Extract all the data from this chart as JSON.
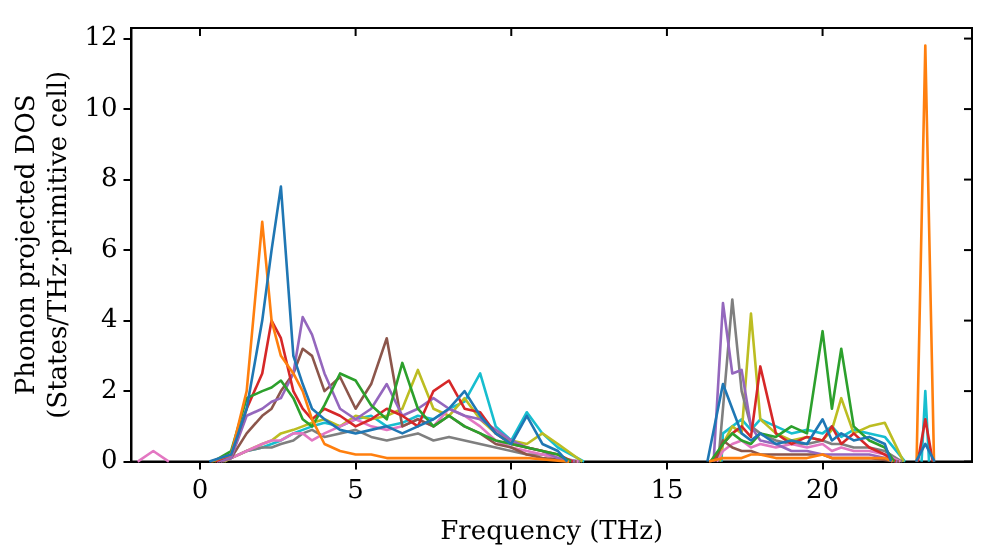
{
  "chart_data": {
    "type": "line",
    "xlabel": "Frequency (THz)",
    "ylabel": "Phonon projected DOS\n(States/THz·primitive cell)",
    "series": [
      {
        "color": "#1f77b4",
        "x": [
          0.3,
          1,
          1.5,
          2,
          2.3,
          2.6,
          3,
          3.3,
          3.6,
          4,
          4.5,
          5,
          5.5,
          6,
          6.5,
          7,
          7.5,
          8,
          8.5,
          9,
          9.5,
          10,
          10.5,
          11,
          11.5,
          11.8,
          14,
          16.3,
          16.8,
          17.1,
          17.4,
          17.7,
          18,
          18.5,
          19,
          19.5,
          20,
          20.3,
          20.6,
          21,
          21.5,
          22,
          22.2,
          22.8,
          23.0,
          23.3,
          23.6
        ],
        "values": [
          0,
          0.2,
          1.5,
          4,
          6,
          7.8,
          3,
          2.2,
          1.5,
          1.2,
          0.9,
          0.8,
          0.9,
          1.0,
          0.8,
          1.0,
          1.2,
          1.5,
          2.0,
          1.3,
          0.8,
          0.5,
          1.3,
          0.5,
          0.3,
          0,
          null,
          0,
          2.2,
          1.5,
          0.8,
          0.6,
          0.8,
          0.5,
          0.6,
          0.5,
          1.2,
          0.6,
          0.8,
          0.6,
          0.7,
          0.5,
          0,
          null,
          0,
          0.5,
          0
        ]
      },
      {
        "color": "#ff7f0e",
        "x": [
          0.36,
          1,
          1.5,
          2,
          2.3,
          2.6,
          3,
          3.3,
          3.6,
          4,
          4.5,
          5,
          5.5,
          6,
          6.5,
          7,
          7.5,
          8,
          8.5,
          9,
          9.5,
          10,
          10.5,
          11.86,
          14,
          16.35,
          16.8,
          17.1,
          17.4,
          17.7,
          18,
          18.5,
          19,
          19.5,
          20,
          20.3,
          20.6,
          21,
          21.5,
          22,
          22.25,
          22.8,
          23.02,
          23.3,
          23.58
        ],
        "values": [
          0,
          0.2,
          2,
          6.8,
          4,
          3,
          2.5,
          2,
          1.2,
          0.5,
          0.3,
          0.2,
          0.2,
          0.1,
          0.1,
          0.1,
          0.1,
          0.1,
          0.1,
          0.1,
          0.1,
          0.1,
          0.1,
          0,
          null,
          0,
          0.1,
          0.1,
          0.1,
          0.2,
          0.2,
          0.1,
          0.1,
          0.1,
          0.2,
          0.1,
          0.1,
          0.1,
          0.1,
          0.1,
          0,
          null,
          0,
          11.8,
          0
        ]
      },
      {
        "color": "#2ca02c",
        "x": [
          0.42,
          1,
          1.5,
          2,
          2.3,
          2.6,
          3,
          3.3,
          3.6,
          4,
          4.5,
          5,
          5.5,
          6,
          6.5,
          7,
          7.5,
          8,
          8.5,
          9,
          9.5,
          10,
          10.5,
          11,
          11.5,
          11.92,
          14,
          16.4,
          16.8,
          17.1,
          17.4,
          17.7,
          18,
          18.5,
          19,
          19.5,
          20,
          20.3,
          20.6,
          21,
          21.5,
          22,
          22.3
        ],
        "values": [
          0,
          0.3,
          1.8,
          2,
          2.1,
          2.3,
          1.8,
          1.2,
          1,
          1.6,
          2.5,
          2.3,
          1.6,
          1.2,
          2.8,
          1.5,
          1.0,
          1.3,
          1.0,
          0.8,
          0.6,
          0.5,
          0.4,
          0.3,
          0.2,
          0,
          null,
          0,
          0.5,
          0.8,
          0.6,
          0.5,
          0.8,
          0.7,
          1,
          0.8,
          3.7,
          1.5,
          3.2,
          1.0,
          0.6,
          0.4,
          0
        ]
      },
      {
        "color": "#d62728",
        "x": [
          0.48,
          1,
          1.5,
          2,
          2.3,
          2.6,
          3,
          3.3,
          3.6,
          4,
          4.5,
          5,
          5.5,
          6,
          6.5,
          7,
          7.5,
          8,
          8.5,
          9,
          9.5,
          10,
          10.5,
          11,
          11.5,
          11.98,
          14,
          16.45,
          16.8,
          17.1,
          17.4,
          17.7,
          18,
          18.5,
          19,
          19.5,
          20,
          20.3,
          20.6,
          21,
          21.5,
          22,
          22.35,
          22.8,
          23.06,
          23.3,
          23.54
        ],
        "values": [
          0,
          0.2,
          1.5,
          2.5,
          4,
          3.5,
          2,
          1.5,
          1.2,
          1.5,
          1.3,
          1.0,
          1.2,
          1.5,
          1.3,
          1.0,
          2.0,
          2.3,
          1.5,
          1.4,
          0.8,
          0.5,
          0.4,
          0.3,
          0.2,
          0,
          null,
          0,
          0.5,
          0.8,
          1.0,
          0.7,
          2.7,
          0.8,
          0.5,
          0.7,
          0.6,
          1.0,
          0.5,
          0.8,
          0.4,
          0.2,
          0,
          null,
          0,
          1.2,
          0
        ]
      },
      {
        "color": "#9467bd",
        "x": [
          0.54,
          1,
          1.5,
          2,
          2.3,
          2.6,
          3,
          3.3,
          3.6,
          4,
          4.5,
          5,
          5.5,
          6,
          6.5,
          7,
          7.5,
          8,
          8.5,
          9,
          9.5,
          10,
          10.5,
          11,
          11.5,
          12.04,
          14,
          16.5,
          16.8,
          17.1,
          17.4,
          17.7,
          18,
          18.5,
          19,
          19.5,
          20,
          20.3,
          20.6,
          21,
          21.5,
          22,
          22.4
        ],
        "values": [
          0,
          0.1,
          1.3,
          1.5,
          1.7,
          1.8,
          2.5,
          4.1,
          3.6,
          2.5,
          1.5,
          1.2,
          1.5,
          2.2,
          1.3,
          1.5,
          1.8,
          1.5,
          1.3,
          1.2,
          0.9,
          0.6,
          0.4,
          0.3,
          0.1,
          0,
          null,
          0,
          4.5,
          2.5,
          2.6,
          1.0,
          0.6,
          0.5,
          0.3,
          0.3,
          0.2,
          0.2,
          0.2,
          0.2,
          0.2,
          0.1,
          0
        ]
      },
      {
        "color": "#8c564b",
        "x": [
          0.6,
          1,
          1.5,
          2,
          2.3,
          2.6,
          3,
          3.3,
          3.6,
          4,
          4.5,
          5,
          5.5,
          6,
          6.5,
          7,
          7.5,
          8,
          8.5,
          9,
          9.5,
          10,
          10.5,
          11,
          12.1,
          14,
          16.55,
          16.8,
          17.1,
          17.4,
          17.7,
          18,
          18.5,
          19,
          19.5,
          20,
          20.3,
          20.6,
          21,
          21.5,
          22.45
        ],
        "values": [
          0,
          0.1,
          0.8,
          1.3,
          1.5,
          2,
          2.5,
          3.2,
          3.0,
          2.0,
          2.4,
          1.5,
          2.2,
          3.5,
          1.0,
          1.2,
          1.0,
          1.3,
          1.0,
          0.8,
          0.5,
          0.4,
          0.2,
          0.1,
          0,
          null,
          0,
          0.6,
          0.4,
          0.3,
          0.3,
          0.2,
          0.2,
          0.2,
          0.2,
          0.2,
          0.1,
          0.1,
          0.1,
          0.1,
          0
        ]
      },
      {
        "color": "#e377c2",
        "x": [
          -2,
          -1.5,
          -1,
          -0.5,
          0.66,
          1,
          1.5,
          2,
          2.3,
          2.6,
          3,
          3.3,
          3.6,
          4,
          4.5,
          5,
          5.5,
          6,
          6.5,
          7,
          7.5,
          8,
          8.5,
          9,
          9.5,
          10,
          10.5,
          11,
          11.5,
          12.16,
          14,
          16.6,
          16.8,
          17.1,
          17.4,
          17.7,
          18,
          18.5,
          19,
          19.5,
          20,
          20.3,
          20.6,
          21,
          21.5,
          22,
          22.5
        ],
        "values": [
          0,
          0.3,
          0,
          null,
          0,
          0.1,
          0.3,
          0.5,
          0.6,
          0.6,
          0.8,
          0.8,
          0.6,
          0.8,
          1.0,
          1.2,
          1.0,
          0.9,
          1.0,
          1.2,
          1.0,
          1.5,
          1.3,
          1.0,
          0.6,
          0.4,
          0.3,
          0.2,
          0.1,
          0,
          null,
          0,
          0.3,
          0.5,
          0.6,
          0.4,
          0.5,
          0.4,
          0.5,
          0.4,
          0.5,
          0.3,
          0.4,
          0.3,
          0.3,
          0.2,
          0
        ]
      },
      {
        "color": "#7f7f7f",
        "x": [
          0.72,
          1,
          1.5,
          2,
          2.3,
          2.6,
          3,
          3.3,
          3.6,
          4,
          4.5,
          5,
          5.5,
          6,
          6.5,
          7,
          7.5,
          8,
          8.5,
          9,
          9.5,
          10,
          10.5,
          11,
          11.5,
          12.22,
          14,
          16.65,
          16.8,
          17.1,
          17.4,
          17.7,
          18,
          18.5,
          19,
          19.5,
          20,
          20.3,
          20.6,
          21,
          21.5,
          22,
          22.55
        ],
        "values": [
          0,
          0.1,
          0.3,
          0.4,
          0.4,
          0.5,
          0.6,
          0.8,
          0.9,
          0.7,
          0.8,
          0.9,
          0.7,
          0.6,
          0.7,
          0.8,
          0.6,
          0.7,
          0.6,
          0.5,
          0.4,
          0.3,
          0.2,
          0.2,
          0.1,
          0,
          null,
          0,
          1.5,
          4.6,
          2.0,
          1.0,
          0.8,
          0.6,
          0.5,
          0.5,
          0.6,
          0.5,
          0.5,
          0.4,
          0.4,
          0.3,
          0
        ]
      },
      {
        "color": "#bcbd22",
        "x": [
          0.78,
          1,
          1.5,
          2,
          2.3,
          2.6,
          3,
          3.3,
          3.6,
          4,
          4.5,
          5,
          5.5,
          6,
          6.5,
          7,
          7.5,
          8,
          8.5,
          9,
          9.5,
          10,
          10.5,
          11,
          11.5,
          12.28,
          14,
          16.7,
          16.8,
          17.1,
          17.4,
          17.7,
          18,
          18.5,
          19,
          19.5,
          20,
          20.3,
          20.6,
          21,
          21.5,
          22,
          22.6
        ],
        "values": [
          0,
          0.1,
          0.3,
          0.5,
          0.6,
          0.8,
          0.9,
          1.0,
          1.1,
          1.2,
          1.0,
          1.3,
          1.2,
          1.3,
          1.5,
          2.6,
          1.5,
          1.3,
          1.8,
          1.2,
          0.8,
          0.6,
          0.5,
          0.8,
          0.5,
          0,
          null,
          0,
          0.5,
          1.0,
          0.8,
          4.2,
          1.2,
          0.8,
          0.6,
          0.7,
          0.6,
          0.9,
          1.8,
          0.8,
          1.0,
          1.1,
          0
        ]
      },
      {
        "color": "#17becf",
        "x": [
          1.5,
          2,
          2.3,
          2.6,
          3,
          3.3,
          3.6,
          4,
          4.5,
          5,
          5.5,
          6,
          6.5,
          7,
          7.5,
          8,
          8.5,
          9,
          9.5,
          10,
          10.5,
          11,
          11.5,
          12.34,
          14,
          16.75,
          16.8,
          17.1,
          17.4,
          17.7,
          18,
          18.5,
          19,
          19.5,
          20,
          20.3,
          20.6,
          21,
          21.5,
          22,
          22.65,
          22.8,
          23.18,
          23.3,
          23.42
        ],
        "values": [
          0.3,
          0.4,
          0.5,
          0.6,
          0.8,
          0.9,
          1.0,
          1.1,
          1.0,
          1.2,
          1.3,
          1.0,
          1.1,
          1.3,
          1.2,
          1.5,
          1.7,
          2.5,
          1.0,
          0.6,
          1.4,
          0.8,
          0.4,
          0,
          null,
          0,
          0.8,
          1.0,
          1.2,
          0.9,
          1.2,
          1.0,
          0.8,
          0.9,
          0.8,
          1.0,
          0.7,
          0.9,
          0.8,
          0.7,
          0,
          null,
          0,
          2.0,
          0
        ]
      }
    ],
    "xlim": [
      -2.2,
      24.8
    ],
    "xticks": [
      0,
      5,
      10,
      15,
      20
    ],
    "ylim": [
      0,
      12.3
    ],
    "yticks": [
      0,
      2,
      4,
      6,
      8,
      10,
      12
    ],
    "grid": false,
    "legend": false,
    "marker": "none",
    "line_style": "solid"
  }
}
